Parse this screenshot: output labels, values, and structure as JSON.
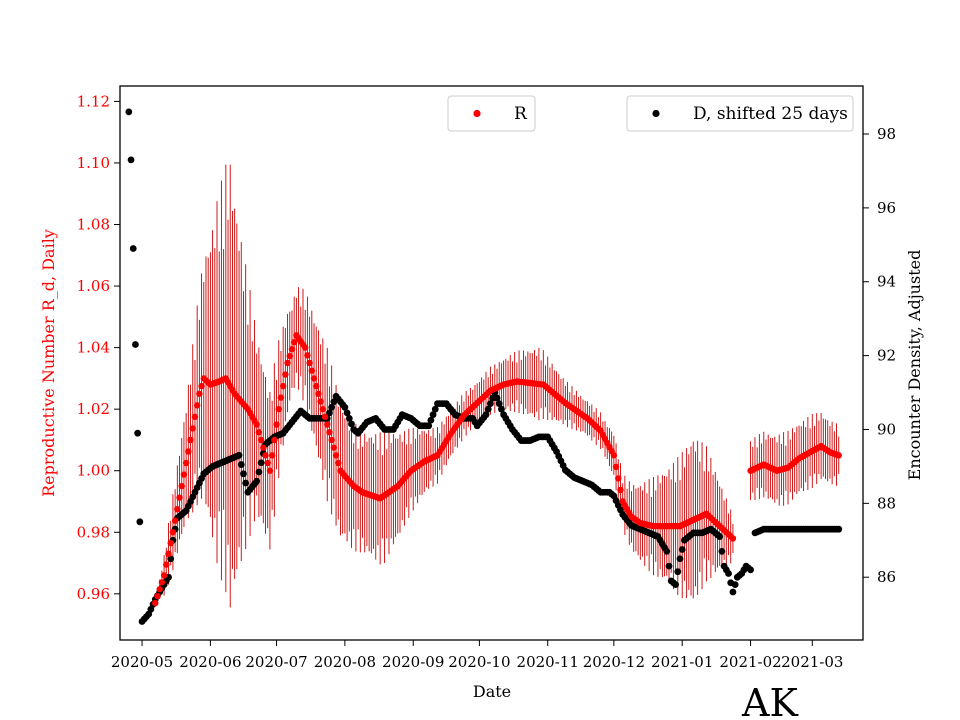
{
  "chart_data": {
    "type": "scatter",
    "state_label": "AK",
    "xlabel": "Date",
    "ylabel_left": "Reproductive Number R_d, Daily",
    "ylabel_right": "Encounter Density, Adjusted",
    "x_tick_labels": [
      "2020-05",
      "2020-06",
      "2020-07",
      "2020-08",
      "2020-09",
      "2020-10",
      "2020-11",
      "2020-12",
      "2021-01",
      "2021-02",
      "2021-03"
    ],
    "x_tick_days": [
      0,
      31,
      61,
      92,
      123,
      153,
      184,
      214,
      245,
      276,
      304
    ],
    "x_range_days": [
      -10,
      327
    ],
    "y_left_ticks": [
      "0.96",
      "0.98",
      "1.00",
      "1.02",
      "1.04",
      "1.06",
      "1.08",
      "1.10",
      "1.12"
    ],
    "y_left_range": [
      0.945,
      1.125
    ],
    "y_right_ticks": [
      "86",
      "88",
      "90",
      "92",
      "94",
      "96",
      "98"
    ],
    "y_right_range": [
      84.3,
      99.3
    ],
    "colors": {
      "R": "#ff0000",
      "D": "#000000",
      "errorbar": "#cc0000"
    },
    "legend": {
      "R_label": "R",
      "D_label": "D, shifted 25 days"
    },
    "R_series": {
      "name": "R",
      "keypoints": [
        [
          6,
          0.957
        ],
        [
          10,
          0.966
        ],
        [
          14,
          0.98
        ],
        [
          18,
          0.995
        ],
        [
          22,
          1.01
        ],
        [
          26,
          1.025
        ],
        [
          28,
          1.03
        ],
        [
          31,
          1.028
        ],
        [
          35,
          1.029
        ],
        [
          38,
          1.03
        ],
        [
          42,
          1.025
        ],
        [
          48,
          1.02
        ],
        [
          52,
          1.015
        ],
        [
          56,
          1.005
        ],
        [
          58,
          1.0
        ],
        [
          62,
          1.02
        ],
        [
          66,
          1.035
        ],
        [
          70,
          1.044
        ],
        [
          74,
          1.04
        ],
        [
          78,
          1.03
        ],
        [
          82,
          1.02
        ],
        [
          86,
          1.01
        ],
        [
          90,
          1.0
        ],
        [
          96,
          0.995
        ],
        [
          100,
          0.993
        ],
        [
          108,
          0.991
        ],
        [
          116,
          0.995
        ],
        [
          122,
          1.0
        ],
        [
          128,
          1.003
        ],
        [
          134,
          1.005
        ],
        [
          140,
          1.012
        ],
        [
          146,
          1.018
        ],
        [
          152,
          1.022
        ],
        [
          158,
          1.026
        ],
        [
          164,
          1.028
        ],
        [
          170,
          1.029
        ],
        [
          182,
          1.028
        ],
        [
          192,
          1.022
        ],
        [
          202,
          1.017
        ],
        [
          208,
          1.013
        ],
        [
          214,
          1.005
        ],
        [
          218,
          0.99
        ],
        [
          222,
          0.985
        ],
        [
          226,
          0.983
        ],
        [
          232,
          0.982
        ],
        [
          238,
          0.982
        ],
        [
          244,
          0.982
        ],
        [
          250,
          0.984
        ],
        [
          256,
          0.986
        ],
        [
          262,
          0.982
        ],
        [
          268,
          0.978
        ]
      ],
      "second_segment": [
        [
          276,
          1.0
        ],
        [
          282,
          1.002
        ],
        [
          288,
          1.0
        ],
        [
          293,
          1.001
        ],
        [
          298,
          1.004
        ],
        [
          303,
          1.006
        ],
        [
          308,
          1.008
        ],
        [
          312,
          1.006
        ],
        [
          316,
          1.005
        ]
      ],
      "error_halfwidth_keypoints": [
        [
          6,
          0.0
        ],
        [
          12,
          0.01
        ],
        [
          20,
          0.02
        ],
        [
          28,
          0.04
        ],
        [
          34,
          0.06
        ],
        [
          40,
          0.075
        ],
        [
          46,
          0.05
        ],
        [
          52,
          0.03
        ],
        [
          60,
          0.025
        ],
        [
          68,
          0.015
        ],
        [
          76,
          0.02
        ],
        [
          84,
          0.025
        ],
        [
          92,
          0.022
        ],
        [
          100,
          0.02
        ],
        [
          110,
          0.022
        ],
        [
          120,
          0.015
        ],
        [
          130,
          0.01
        ],
        [
          140,
          0.008
        ],
        [
          150,
          0.007
        ],
        [
          160,
          0.008
        ],
        [
          170,
          0.01
        ],
        [
          180,
          0.012
        ],
        [
          190,
          0.008
        ],
        [
          200,
          0.006
        ],
        [
          210,
          0.006
        ],
        [
          220,
          0.01
        ],
        [
          230,
          0.015
        ],
        [
          240,
          0.02
        ],
        [
          250,
          0.028
        ],
        [
          258,
          0.02
        ],
        [
          266,
          0.01
        ],
        [
          270,
          0.005
        ],
        [
          276,
          0.01
        ],
        [
          290,
          0.012
        ],
        [
          304,
          0.012
        ],
        [
          316,
          0.01
        ]
      ]
    },
    "D_series": {
      "name": "D, shifted 25 days",
      "keypoints": [
        [
          -6,
          98.6
        ],
        [
          -5,
          97.3
        ],
        [
          -4,
          94.9
        ],
        [
          -3,
          92.3
        ],
        [
          -2,
          89.9
        ],
        [
          -1,
          87.5
        ],
        [
          0,
          84.8
        ],
        [
          3,
          85.0
        ],
        [
          6,
          85.4
        ],
        [
          9,
          85.7
        ],
        [
          12,
          86.0
        ],
        [
          14,
          87.0
        ],
        [
          16,
          87.6
        ],
        [
          20,
          87.8
        ],
        [
          24,
          88.3
        ],
        [
          28,
          88.8
        ],
        [
          32,
          89.0
        ],
        [
          36,
          89.1
        ],
        [
          40,
          89.2
        ],
        [
          44,
          89.3
        ],
        [
          48,
          88.3
        ],
        [
          52,
          88.6
        ],
        [
          56,
          89.6
        ],
        [
          60,
          89.8
        ],
        [
          64,
          89.9
        ],
        [
          68,
          90.2
        ],
        [
          72,
          90.5
        ],
        [
          76,
          90.3
        ],
        [
          80,
          90.3
        ],
        [
          84,
          90.3
        ],
        [
          88,
          90.9
        ],
        [
          92,
          90.6
        ],
        [
          96,
          90.0
        ],
        [
          98,
          89.9
        ],
        [
          102,
          90.2
        ],
        [
          106,
          90.3
        ],
        [
          110,
          90.0
        ],
        [
          114,
          90.0
        ],
        [
          118,
          90.4
        ],
        [
          122,
          90.3
        ],
        [
          126,
          90.1
        ],
        [
          130,
          90.1
        ],
        [
          134,
          90.7
        ],
        [
          138,
          90.7
        ],
        [
          142,
          90.4
        ],
        [
          146,
          90.3
        ],
        [
          150,
          90.3
        ],
        [
          152,
          90.1
        ],
        [
          156,
          90.4
        ],
        [
          160,
          91.0
        ],
        [
          164,
          90.4
        ],
        [
          168,
          90.0
        ],
        [
          172,
          89.7
        ],
        [
          176,
          89.7
        ],
        [
          180,
          89.8
        ],
        [
          184,
          89.8
        ],
        [
          188,
          89.4
        ],
        [
          192,
          88.9
        ],
        [
          196,
          88.7
        ],
        [
          200,
          88.6
        ],
        [
          204,
          88.5
        ],
        [
          208,
          88.3
        ],
        [
          212,
          88.3
        ],
        [
          214,
          88.2
        ],
        [
          218,
          87.7
        ],
        [
          222,
          87.4
        ],
        [
          226,
          87.3
        ],
        [
          230,
          87.2
        ],
        [
          234,
          87.1
        ],
        [
          236,
          86.9
        ],
        [
          238,
          86.7
        ],
        [
          240,
          85.9
        ],
        [
          242,
          85.8
        ],
        [
          244,
          86.5
        ],
        [
          246,
          87.0
        ],
        [
          250,
          87.2
        ],
        [
          254,
          87.2
        ],
        [
          258,
          87.3
        ],
        [
          262,
          87.1
        ],
        [
          264,
          86.3
        ],
        [
          266,
          86.1
        ],
        [
          268,
          85.6
        ],
        [
          270,
          86.0
        ],
        [
          272,
          86.1
        ],
        [
          274,
          86.3
        ],
        [
          276,
          86.2
        ],
        [
          278,
          87.2
        ],
        [
          282,
          87.3
        ],
        [
          290,
          87.3
        ],
        [
          300,
          87.3
        ],
        [
          310,
          87.3
        ],
        [
          316,
          87.3
        ]
      ]
    }
  }
}
